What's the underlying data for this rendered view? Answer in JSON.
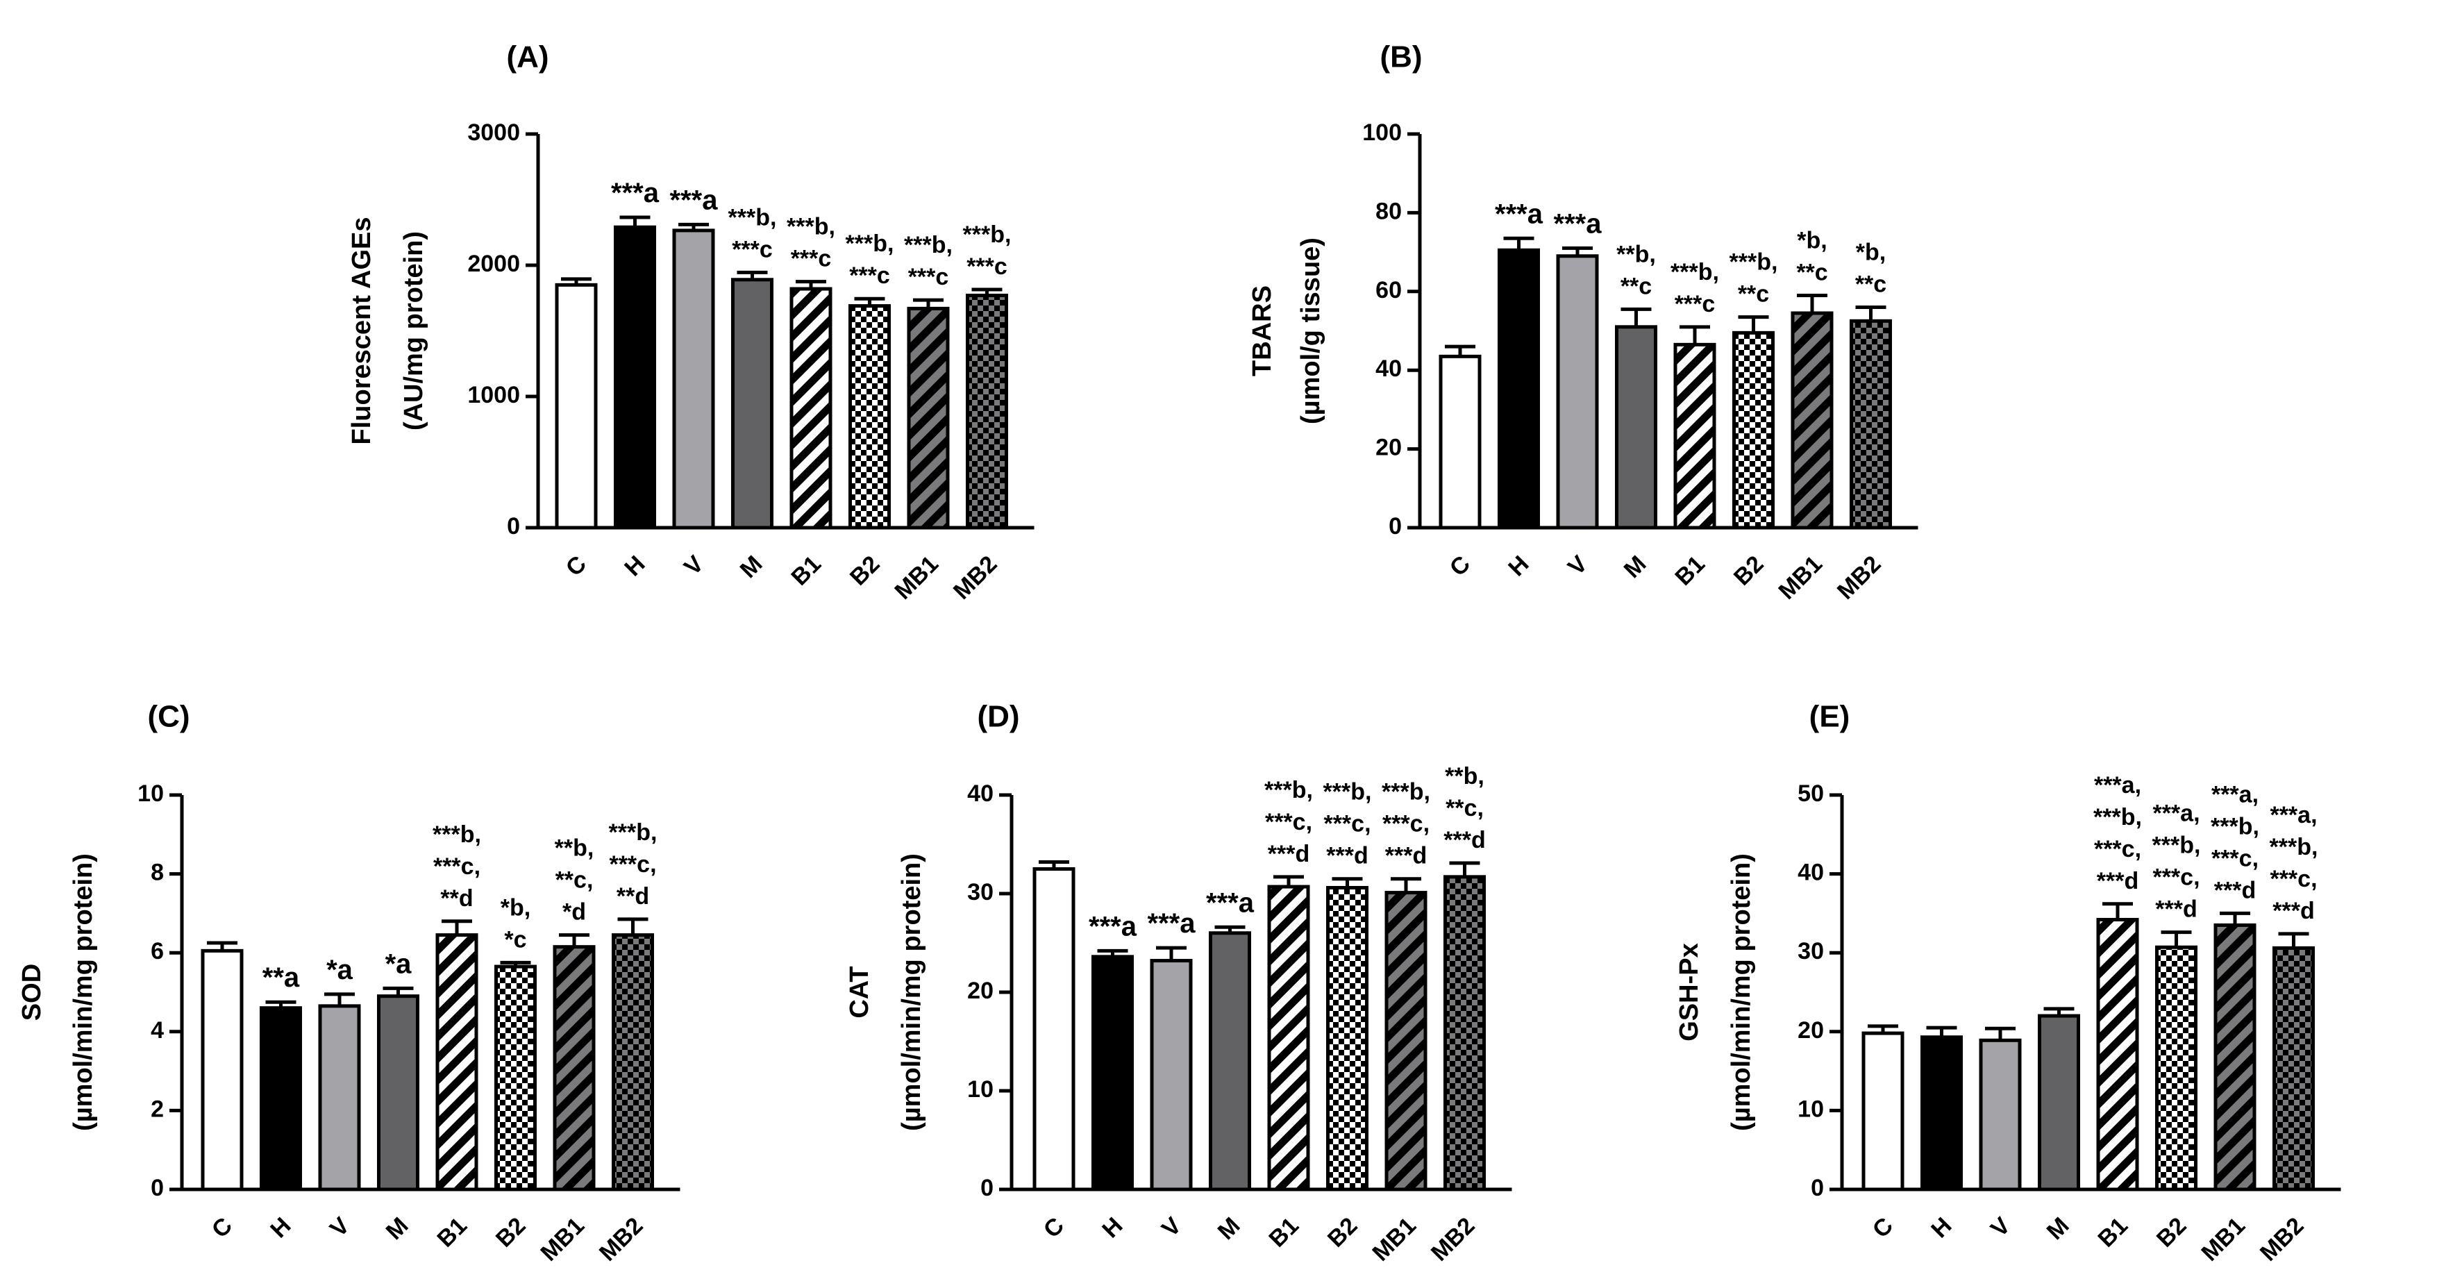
{
  "colors": {
    "C": "#ffffff",
    "H": "#000000",
    "V": "#a3a3a8",
    "M": "#626264",
    "B1": "hatch-diagonal-black-white",
    "B2": "checker-fine-black-white",
    "MB1": "hatch-diagonal-black-gray",
    "MB2": "checker-fine-black-gray"
  },
  "chart_data": [
    {
      "id": "A",
      "panel_label": "(A)",
      "type": "bar",
      "ylabel_lines": [
        "Fluorescent AGEs",
        "(AU/mg protein)"
      ],
      "ylim": [
        0,
        3000
      ],
      "yticks": [
        "0",
        "1000",
        "2000",
        "3000"
      ],
      "categories": [
        "C",
        "H",
        "V",
        "M",
        "B1",
        "B2",
        "MB1",
        "MB2"
      ],
      "values": [
        1850,
        2290,
        2265,
        1890,
        1820,
        1690,
        1670,
        1770
      ],
      "errors": [
        45,
        75,
        45,
        55,
        55,
        55,
        65,
        45
      ],
      "annotations": [
        [],
        [
          "***a"
        ],
        [
          "***a"
        ],
        [
          "***b,",
          "***c"
        ],
        [
          "***b,",
          "***c"
        ],
        [
          "***b,",
          "***c"
        ],
        [
          "***b,",
          "***c"
        ],
        [
          "***b,",
          "***c"
        ]
      ]
    },
    {
      "id": "B",
      "panel_label": "(B)",
      "type": "bar",
      "ylabel_lines": [
        "TBARS",
        "(µmol/g tissue)"
      ],
      "ylim": [
        0,
        100
      ],
      "yticks": [
        "0",
        "20",
        "40",
        "60",
        "80",
        "100"
      ],
      "categories": [
        "C",
        "H",
        "V",
        "M",
        "B1",
        "B2",
        "MB1",
        "MB2"
      ],
      "values": [
        43.5,
        70.5,
        69,
        51,
        46.5,
        49.5,
        54.5,
        52.5
      ],
      "errors": [
        2.5,
        3,
        2,
        4.5,
        4.5,
        4,
        4.5,
        3.5
      ],
      "annotations": [
        [],
        [
          "***a"
        ],
        [
          "***a"
        ],
        [
          "**b,",
          "**c"
        ],
        [
          "***b,",
          "***c"
        ],
        [
          "***b,",
          "**c"
        ],
        [
          "*b,",
          "**c"
        ],
        [
          "*b,",
          "**c"
        ]
      ]
    },
    {
      "id": "C",
      "panel_label": "(C)",
      "type": "bar",
      "ylabel_lines": [
        "SOD",
        "(µmol/min/mg protein)"
      ],
      "ylim": [
        0,
        10
      ],
      "yticks": [
        "0",
        "2",
        "4",
        "6",
        "8",
        "10"
      ],
      "categories": [
        "C",
        "H",
        "V",
        "M",
        "B1",
        "B2",
        "MB1",
        "MB2"
      ],
      "values": [
        6.05,
        4.6,
        4.65,
        4.9,
        6.45,
        5.65,
        6.15,
        6.45
      ],
      "errors": [
        0.2,
        0.15,
        0.3,
        0.2,
        0.35,
        0.1,
        0.3,
        0.4
      ],
      "annotations": [
        [],
        [
          "**a"
        ],
        [
          "*a"
        ],
        [
          "*a"
        ],
        [
          "***b,",
          "***c,",
          "**d"
        ],
        [
          "*b,",
          "*c"
        ],
        [
          "**b,",
          "**c,",
          "*d"
        ],
        [
          "***b,",
          "***c,",
          "**d"
        ]
      ]
    },
    {
      "id": "D",
      "panel_label": "(D)",
      "type": "bar",
      "ylabel_lines": [
        "CAT",
        "(µmol/min/mg protein)"
      ],
      "ylim": [
        0,
        40
      ],
      "yticks": [
        "0",
        "10",
        "20",
        "30",
        "40"
      ],
      "categories": [
        "C",
        "H",
        "V",
        "M",
        "B1",
        "B2",
        "MB1",
        "MB2"
      ],
      "values": [
        32.5,
        23.6,
        23.2,
        26,
        30.7,
        30.6,
        30.1,
        31.7
      ],
      "errors": [
        0.7,
        0.6,
        1.3,
        0.6,
        1.0,
        0.9,
        1.4,
        1.4
      ],
      "annotations": [
        [],
        [
          "***a"
        ],
        [
          "***a"
        ],
        [
          "***a"
        ],
        [
          "***b,",
          "***c,",
          "***d"
        ],
        [
          "***b,",
          "***c,",
          "***d"
        ],
        [
          "***b,",
          "***c,",
          "***d"
        ],
        [
          "**b,",
          "**c,",
          "***d"
        ]
      ]
    },
    {
      "id": "E",
      "panel_label": "(E)",
      "type": "bar",
      "ylabel_lines": [
        "GSH-Px",
        "(µmol/min/mg protein)"
      ],
      "ylim": [
        0,
        50
      ],
      "yticks": [
        "0",
        "10",
        "20",
        "30",
        "40",
        "50"
      ],
      "categories": [
        "C",
        "H",
        "V",
        "M",
        "B1",
        "B2",
        "MB1",
        "MB2"
      ],
      "values": [
        19.8,
        19.3,
        18.9,
        22,
        34.2,
        30.7,
        33.5,
        30.6
      ],
      "errors": [
        0.9,
        1.2,
        1.5,
        0.9,
        2.0,
        1.9,
        1.5,
        1.8
      ],
      "annotations": [
        [],
        [],
        [],
        [],
        [
          "***a,",
          "***b,",
          "***c,",
          "***d"
        ],
        [
          "***a,",
          "***b,",
          "***c,",
          "***d"
        ],
        [
          "***a,",
          "***b,",
          "***c,",
          "***d"
        ],
        [
          "***a,",
          "***b,",
          "***c,",
          "***d"
        ]
      ]
    }
  ]
}
